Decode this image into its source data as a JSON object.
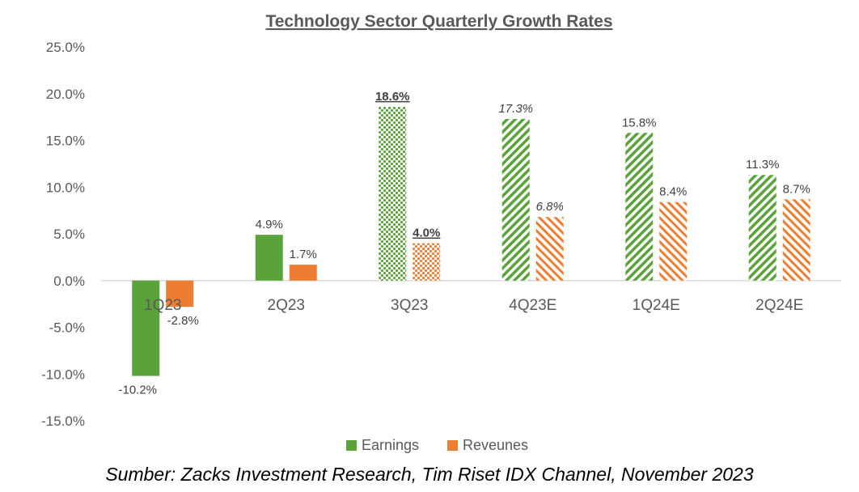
{
  "chart_data": {
    "type": "bar",
    "title": "Technology Sector  Quarterly Growth Rates",
    "categories": [
      "1Q23",
      "2Q23",
      "3Q23",
      "4Q23E",
      "1Q24E",
      "2Q24E"
    ],
    "series": [
      {
        "name": "Earnings",
        "color": "#5AA33A",
        "values": [
          -10.2,
          4.9,
          18.6,
          17.3,
          15.8,
          11.3
        ],
        "labels": [
          "-10.2%",
          "4.9%",
          "18.6%",
          "17.3%",
          "15.8%",
          "11.3%"
        ],
        "fills": [
          "solid",
          "solid",
          "dots",
          "stripes",
          "stripes",
          "stripes"
        ]
      },
      {
        "name": "Reveunes",
        "color": "#ED7D31",
        "values": [
          -2.8,
          1.7,
          4.0,
          6.8,
          8.4,
          8.7
        ],
        "labels": [
          "-2.8%",
          "1.7%",
          "4.0%",
          "6.8%",
          "8.4%",
          "8.7%"
        ],
        "fills": [
          "solid",
          "solid",
          "dots",
          "stripes",
          "stripes",
          "stripes"
        ]
      }
    ],
    "ylim": [
      -15,
      25
    ],
    "ytick_labels": [
      "25.0%",
      "20.0%",
      "15.0%",
      "10.0%",
      "5.0%",
      "0.0%",
      "-5.0%",
      "-10.0%",
      "-15.0%"
    ],
    "grid": false,
    "legend": "bottom"
  },
  "source_text": "Sumber: Zacks Investment Research, Tim Riset IDX Channel, November 2023"
}
